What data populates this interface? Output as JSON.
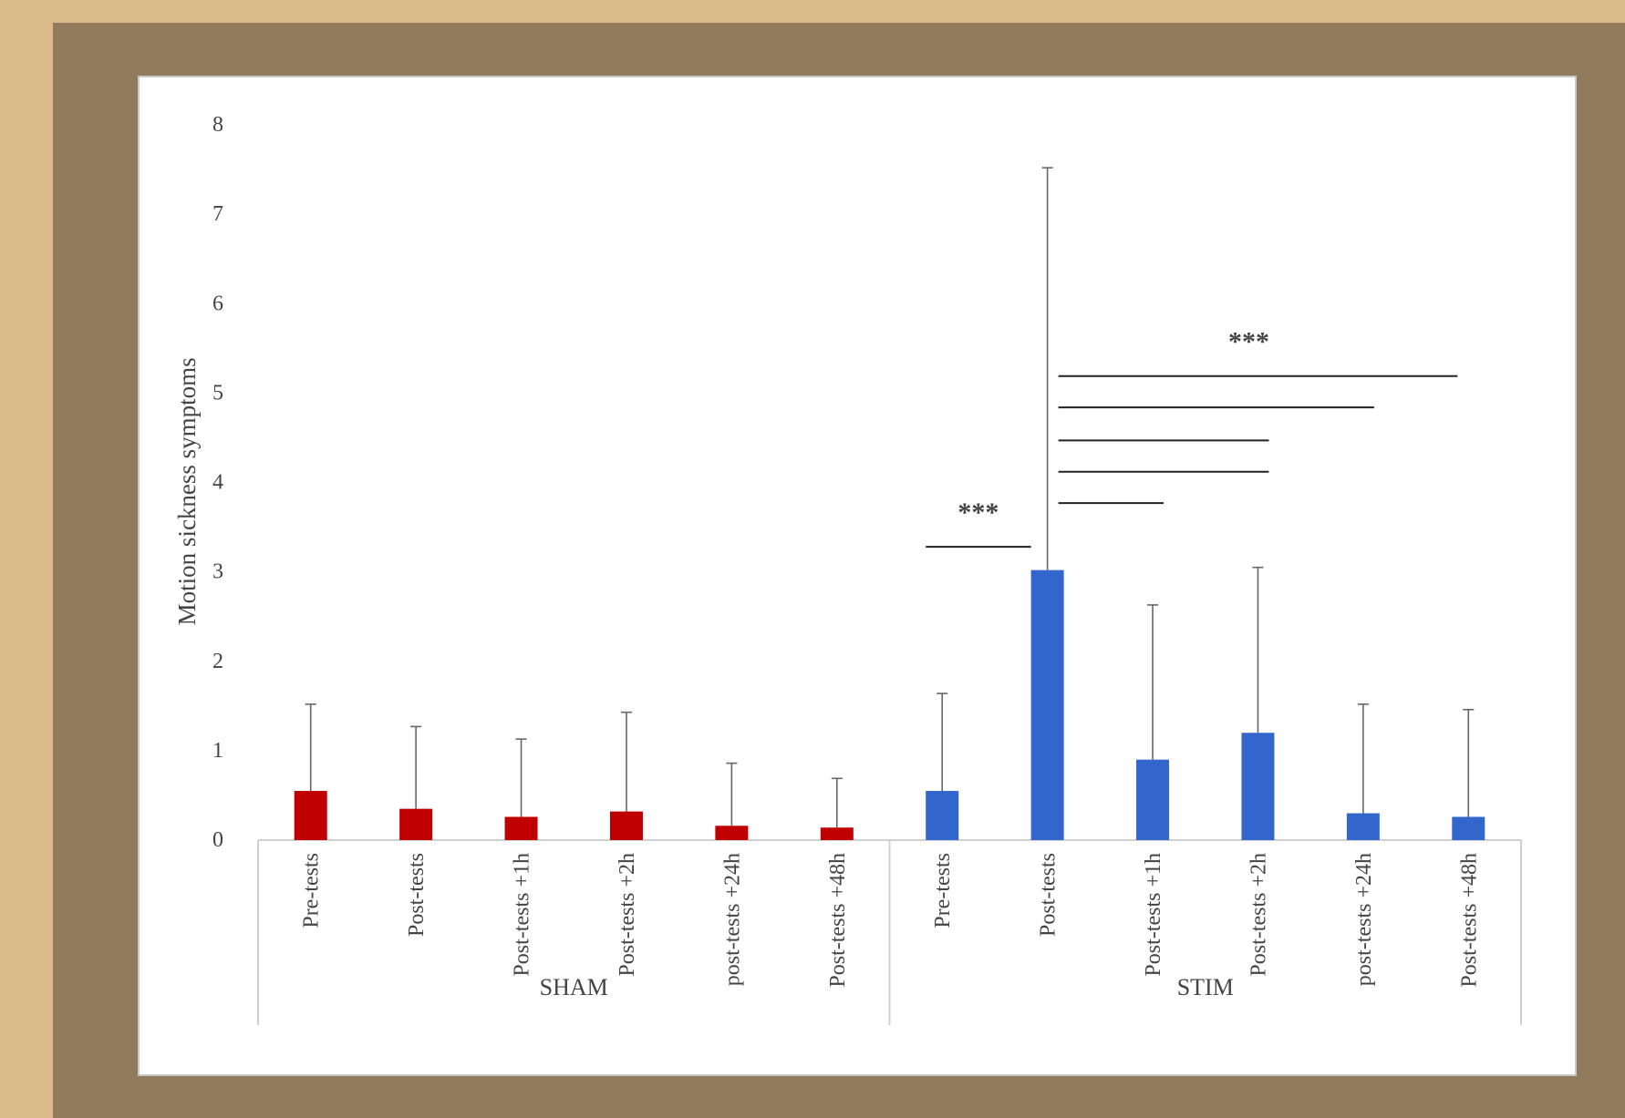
{
  "chart_data": {
    "type": "bar",
    "title": "",
    "ylabel": "Motion sickness symptoms",
    "xlabel": "",
    "ylim": [
      0,
      8
    ],
    "yticks": [
      "0",
      "1",
      "2",
      "3",
      "4",
      "5",
      "6",
      "7",
      "8"
    ],
    "grid": false,
    "groups": [
      {
        "name": "SHAM",
        "color": "#c00000",
        "categories": [
          "Pre-tests",
          "Post-tests",
          "Post-tests +1h",
          "Post-tests +2h",
          "post-tests +24h",
          "Post-tests +48h"
        ],
        "values": [
          0.55,
          0.35,
          0.26,
          0.32,
          0.16,
          0.14
        ],
        "error_upper": [
          1.52,
          1.27,
          1.13,
          1.43,
          0.86,
          0.69
        ]
      },
      {
        "name": "STIM",
        "color": "#3366cc",
        "categories": [
          "Pre-tests",
          "Post-tests",
          "Post-tests +1h",
          "Post-tests +2h",
          "post-tests +24h",
          "Post-tests +48h"
        ],
        "values": [
          0.55,
          3.02,
          0.9,
          1.2,
          0.3,
          0.26
        ],
        "error_upper": [
          1.64,
          7.52,
          2.63,
          3.05,
          1.52,
          1.46
        ]
      }
    ],
    "significance": [
      {
        "label": "***",
        "compare": [
          "STIM Pre-tests",
          "STIM Post-tests"
        ],
        "y": 3.28
      },
      {
        "label": "",
        "compare": [
          "STIM Post-tests",
          "STIM Post-tests +1h"
        ],
        "y": 3.77
      },
      {
        "label": "",
        "compare": [
          "STIM Post-tests",
          "STIM Post-tests +2h"
        ],
        "y": 4.12
      },
      {
        "label": "",
        "compare": [
          "STIM Post-tests",
          "STIM Post-tests +2h"
        ],
        "y": 4.47
      },
      {
        "label": "",
        "compare": [
          "STIM Post-tests",
          "STIM post-tests +24h"
        ],
        "y": 4.84
      },
      {
        "label": "***",
        "compare": [
          "STIM Post-tests",
          "STIM Post-tests +48h"
        ],
        "y": 5.19
      }
    ]
  }
}
